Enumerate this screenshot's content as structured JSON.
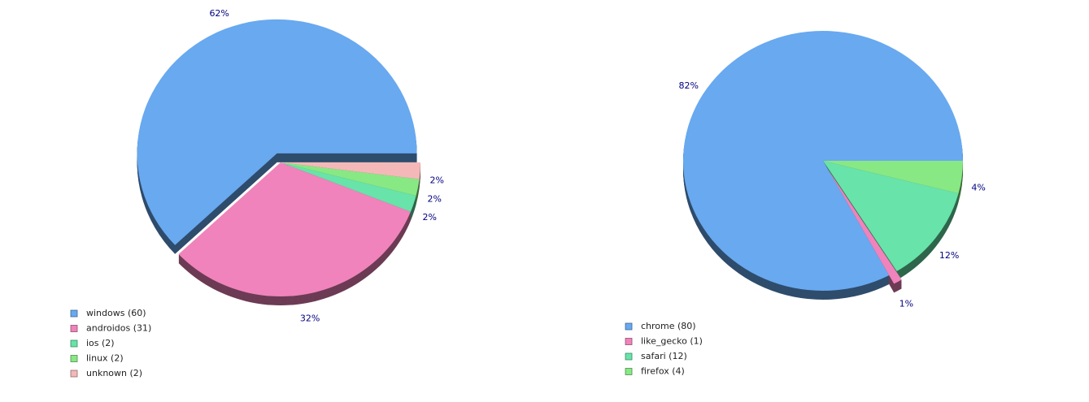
{
  "chart_data": [
    {
      "type": "pie",
      "categories": [
        "windows (60)",
        "androidos (31)",
        "ios (2)",
        "linux (2)",
        "unknown (2)"
      ],
      "values": [
        62,
        32,
        2,
        2,
        2
      ],
      "value_labels": [
        "62%",
        "32%",
        "2%",
        "2%",
        "2%"
      ],
      "colors": [
        "#68a9f0",
        "#f083bb",
        "#68e3a9",
        "#88e884",
        "#f4b8b8"
      ],
      "exploded": 0
    },
    {
      "type": "pie",
      "categories": [
        "chrome (80)",
        "like_gecko (1)",
        "safari (12)",
        "firefox (4)"
      ],
      "values": [
        82,
        1,
        12,
        4
      ],
      "value_labels": [
        "82%",
        "1%",
        "12%",
        "4%"
      ],
      "colors": [
        "#68a9f0",
        "#f083bb",
        "#68e3a9",
        "#88e884"
      ],
      "exploded": 1
    }
  ]
}
